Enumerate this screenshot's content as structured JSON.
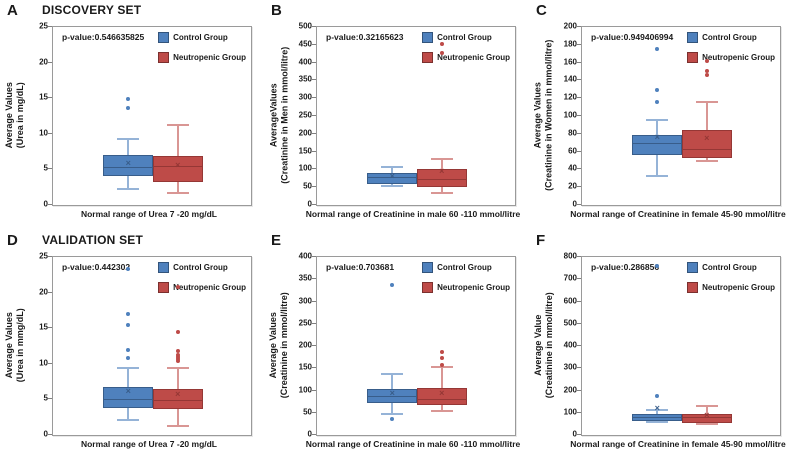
{
  "figure": {
    "row_titles": [
      "DISCOVERY SET",
      "VALIDATION SET"
    ]
  },
  "legend": {
    "control_label": "Control Group",
    "neutropenic_label": "Neutropenic Group"
  },
  "colors": {
    "control_fill": "#4F81BD",
    "control_border": "#385D8A",
    "control_whisker": "#95B3D7",
    "neutropenic_fill": "#BE4B48",
    "neutropenic_border": "#953735",
    "neutropenic_whisker": "#D99694",
    "axis_border": "#9A9A9A",
    "text": "#1A1A1A"
  },
  "chart_data": [
    {
      "type": "boxplot",
      "panel": "A",
      "set_title": "DISCOVERY SET",
      "p_value_label": "p-value:0.546635825",
      "ylabel_line1": "Average Values",
      "ylabel_line2": "(Urea in mg/dL)",
      "xlabel": "Normal range of Urea 7 -20 mg/dL",
      "ylim": [
        0,
        25
      ],
      "ytick_step": 5,
      "series": [
        {
          "name": "Control Group",
          "group": "control",
          "whisker_low": 2.3,
          "q1": 4.3,
          "median": 5.3,
          "q3": 7.0,
          "whisker_high": 9.2,
          "mean": 5.7,
          "outliers": [
            13.6,
            14.9
          ]
        },
        {
          "name": "Neutropenic Group",
          "group": "neutropenic",
          "whisker_low": 1.7,
          "q1": 3.5,
          "median": 5.5,
          "q3": 6.9,
          "whisker_high": 11.3,
          "mean": 5.5,
          "outliers": []
        }
      ]
    },
    {
      "type": "boxplot",
      "panel": "B",
      "set_title": "",
      "p_value_label": "p-value:0.32165623",
      "ylabel_line1": "AverageValues",
      "ylabel_line2": "(Creatinine in Men in mmol/litre)",
      "xlabel": "Normal range of Creatinine in male 60 -110 mmol/litre",
      "ylim": [
        0,
        500
      ],
      "ytick_step": 50,
      "series": [
        {
          "name": "Control Group",
          "group": "control",
          "whisker_low": 52,
          "q1": 65,
          "median": 78,
          "q3": 90,
          "whisker_high": 107,
          "mean": 78,
          "outliers": []
        },
        {
          "name": "Neutropenic Group",
          "group": "neutropenic",
          "whisker_low": 35,
          "q1": 55,
          "median": 72,
          "q3": 102,
          "whisker_high": 130,
          "mean": 92,
          "outliers": [
            427,
            452
          ]
        }
      ]
    },
    {
      "type": "boxplot",
      "panel": "C",
      "set_title": "",
      "p_value_label": "p-value:0.949406994",
      "ylabel_line1": "Average Values",
      "ylabel_line2": "(Creatinine in Women in mmol/litre)",
      "xlabel": "Normal range of Creatinine in female 45-90 mmol/litre",
      "ylim": [
        0,
        200
      ],
      "ytick_step": 20,
      "series": [
        {
          "name": "Control Group",
          "group": "control",
          "whisker_low": 33,
          "q1": 58,
          "median": 70,
          "q3": 79,
          "whisker_high": 95,
          "mean": 75,
          "outliers": [
            116,
            129,
            175
          ]
        },
        {
          "name": "Neutropenic Group",
          "group": "neutropenic",
          "whisker_low": 49,
          "q1": 55,
          "median": 63,
          "q3": 84,
          "whisker_high": 116,
          "mean": 74,
          "outliers": [
            146,
            151,
            162
          ]
        }
      ]
    },
    {
      "type": "boxplot",
      "panel": "D",
      "set_title": "VALIDATION SET",
      "p_value_label": "p-value:0.442302",
      "ylabel_line1": "Average Values",
      "ylabel_line2": "(Urea in mmg/dL)",
      "xlabel": "Normal range of Urea 7 -20 mg/dL",
      "ylim": [
        0,
        25
      ],
      "ytick_step": 5,
      "series": [
        {
          "name": "Control Group",
          "group": "control",
          "whisker_low": 2.1,
          "q1": 4.1,
          "median": 5.0,
          "q3": 6.8,
          "whisker_high": 9.4,
          "mean": 6.0,
          "outliers": [
            10.8,
            12.0,
            15.5,
            17.0,
            23.3
          ]
        },
        {
          "name": "Neutropenic Group",
          "group": "neutropenic",
          "whisker_low": 1.3,
          "q1": 3.9,
          "median": 4.9,
          "q3": 6.4,
          "whisker_high": 9.4,
          "mean": 5.6,
          "outliers": [
            10.4,
            10.7,
            11.0,
            11.3,
            11.8,
            14.4,
            20.8
          ]
        }
      ]
    },
    {
      "type": "boxplot",
      "panel": "E",
      "set_title": "",
      "p_value_label": "p-value:0.703681",
      "ylabel_line1": "Average Values",
      "ylabel_line2": "(Creatinine in mmol/litre)",
      "xlabel": "Normal range of Creatinine in male 60 -110 mmol/litre",
      "ylim": [
        0,
        400
      ],
      "ytick_step": 50,
      "series": [
        {
          "name": "Control Group",
          "group": "control",
          "whisker_low": 47,
          "q1": 77,
          "median": 88,
          "q3": 103,
          "whisker_high": 137,
          "mean": 93,
          "outliers": [
            37,
            337
          ]
        },
        {
          "name": "Neutropenic Group",
          "group": "neutropenic",
          "whisker_low": 53,
          "q1": 72,
          "median": 80,
          "q3": 105,
          "whisker_high": 153,
          "mean": 92,
          "outliers": [
            158,
            172,
            187
          ]
        }
      ]
    },
    {
      "type": "boxplot",
      "panel": "F",
      "set_title": "",
      "p_value_label": "p-value:0.286856",
      "ylabel_line1": "Average Value",
      "ylabel_line2": "(Creatinine in mmol/litre)",
      "xlabel": "Normal range of Creatinine in female 45-90 mmol/litre",
      "ylim": [
        0,
        800
      ],
      "ytick_step": 100,
      "series": [
        {
          "name": "Control Group",
          "group": "control",
          "whisker_low": 57,
          "q1": 70,
          "median": 82,
          "q3": 95,
          "whisker_high": 113,
          "mean": 116,
          "outliers": [
            175,
            760
          ]
        },
        {
          "name": "Neutropenic Group",
          "group": "neutropenic",
          "whisker_low": 50,
          "q1": 65,
          "median": 80,
          "q3": 95,
          "whisker_high": 130,
          "mean": 85,
          "outliers": []
        }
      ]
    }
  ]
}
